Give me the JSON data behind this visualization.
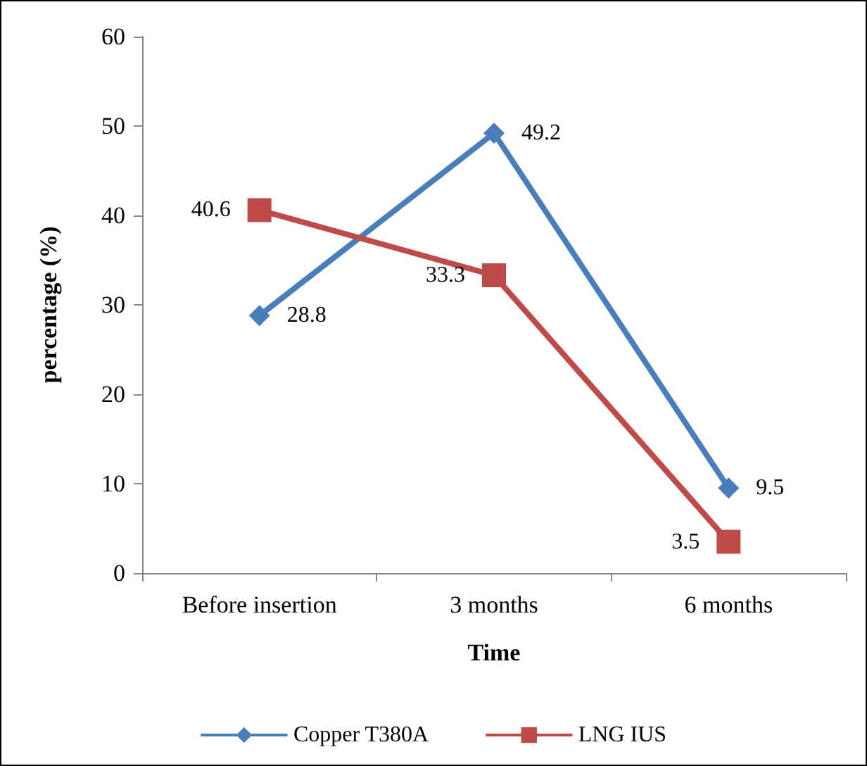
{
  "chart_data": {
    "type": "line",
    "xlabel": "Time",
    "ylabel": "percentage (%)",
    "categories": [
      "Before insertion",
      "3 months",
      "6 months"
    ],
    "series": [
      {
        "name": "Copper T380A",
        "color": "#4a7ebb",
        "marker": "diamond",
        "values": [
          28.8,
          49.2,
          9.5
        ]
      },
      {
        "name": "LNG IUS",
        "color": "#be4b48",
        "marker": "square",
        "values": [
          40.6,
          33.3,
          3.5
        ]
      }
    ],
    "ylim": [
      0,
      60
    ],
    "yticks": [
      0,
      10,
      20,
      30,
      40,
      50,
      60
    ],
    "grid": false,
    "legend": "bottom",
    "data_labels": true,
    "line_style": "solid"
  }
}
